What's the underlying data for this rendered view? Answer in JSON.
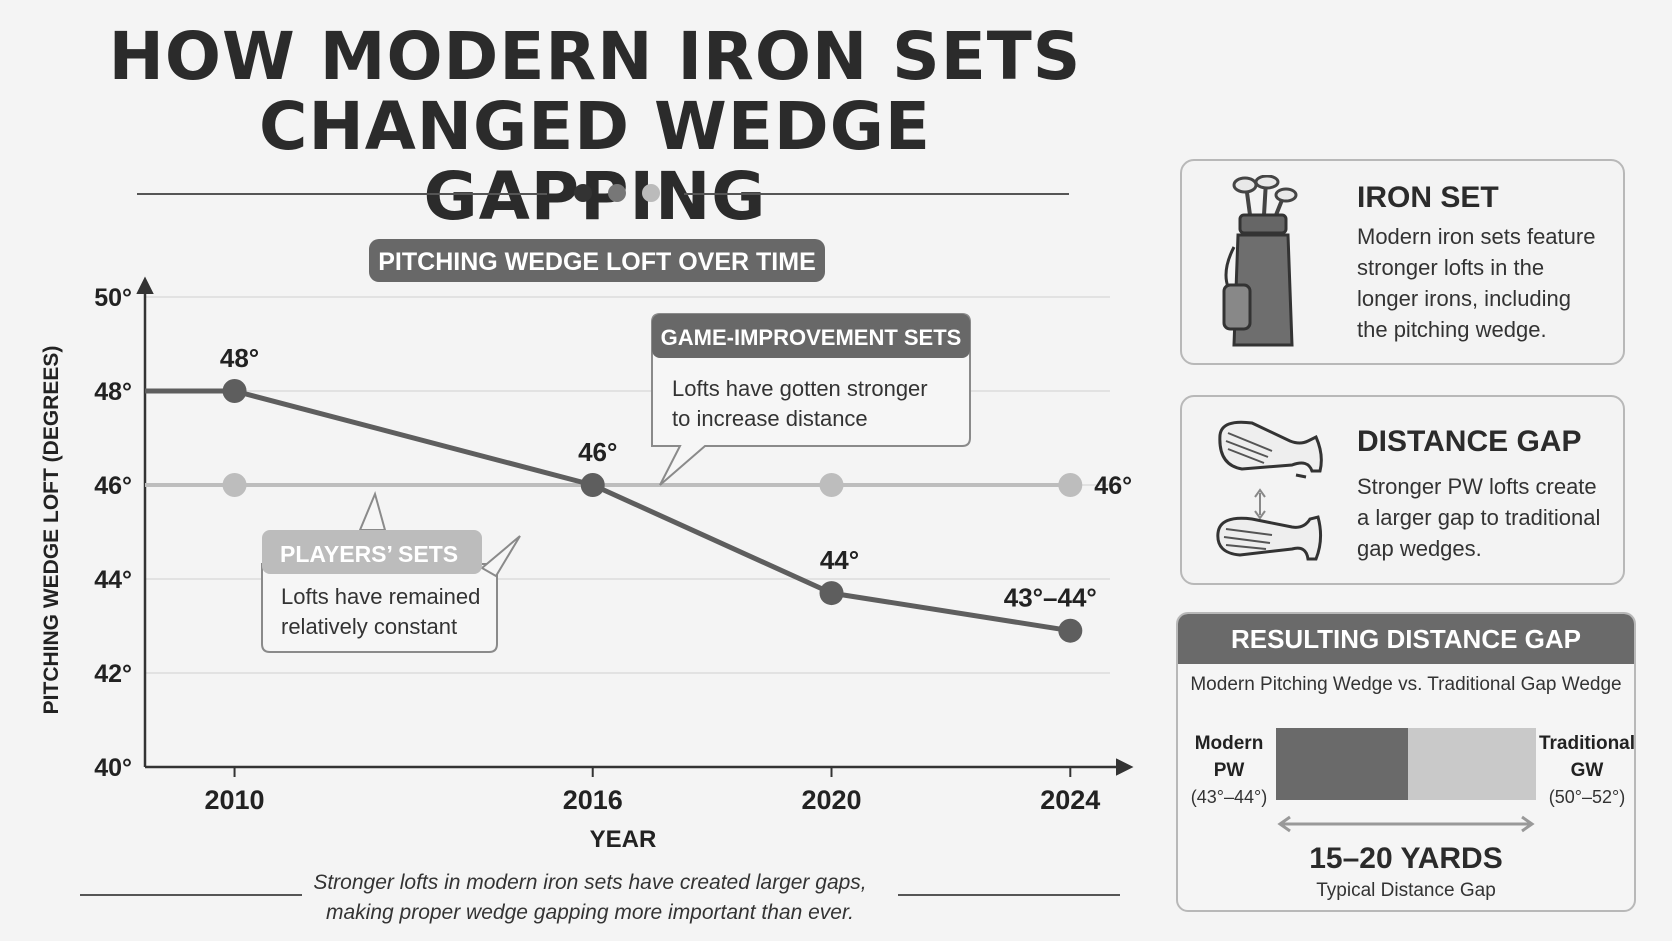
{
  "title": {
    "line1": "HOW MODERN IRON SETS",
    "line2": "CHANGED WEDGE GAPPING"
  },
  "colors": {
    "dark_line": "#5e5e5e",
    "light_line": "#bdbdbd",
    "grid": "#dcdcdc",
    "pill": "#686868"
  },
  "chart_data": {
    "type": "line",
    "title": "PITCHING WEDGE LOFT OVER TIME",
    "xlabel": "YEAR",
    "ylabel": "PITCHING WEDGE LOFT (DEGREES)",
    "x": [
      2010,
      2016,
      2020,
      2024
    ],
    "xlim": [
      2008.5,
      2025
    ],
    "ylim": [
      40,
      50
    ],
    "yticks": [
      "40°",
      "42°",
      "44°",
      "46°",
      "48°",
      "50°"
    ],
    "xticks": [
      "2010",
      "2016",
      "2020",
      "2024"
    ],
    "grid": true,
    "series": [
      {
        "name": "GAME-IMPROVEMENT SETS",
        "values": [
          48,
          46,
          43.7,
          42.9
        ],
        "labels": [
          "48°",
          "46°",
          "44°",
          "43°–44°"
        ],
        "note": [
          "Lofts have gotten stronger",
          "to increase distance"
        ]
      },
      {
        "name": "PLAYERS’ SETS",
        "values": [
          46,
          46,
          46,
          46
        ],
        "labels": [
          "",
          "",
          "",
          "46°"
        ],
        "note": [
          "Lofts have remained",
          "relatively constant"
        ]
      }
    ]
  },
  "panels": {
    "iron_set": {
      "icon": "golf-bag-icon",
      "heading": "IRON SET",
      "lines": [
        "Modern iron sets feature",
        "stronger lofts in the",
        "longer irons, including",
        "the pitching wedge."
      ]
    },
    "distance_gap": {
      "icon": "wedge-heads-icon",
      "heading": "DISTANCE GAP",
      "lines": [
        "Stronger PW lofts create",
        "a larger gap to traditional",
        "gap wedges."
      ]
    }
  },
  "gap_box": {
    "heading": "RESULTING DISTANCE GAP",
    "subtitle": "Modern Pitching Wedge vs. Traditional Gap Wedge",
    "left_label": [
      "Modern",
      "PW",
      "(43°–44°)"
    ],
    "right_label": [
      "Traditional",
      "GW",
      "(50°–52°)"
    ],
    "value": "15–20 YARDS",
    "caption": "Typical Distance Gap"
  },
  "footnote": {
    "line1": "Stronger lofts in modern iron sets have created larger gaps,",
    "line2": "making proper wedge gapping more important than ever."
  }
}
